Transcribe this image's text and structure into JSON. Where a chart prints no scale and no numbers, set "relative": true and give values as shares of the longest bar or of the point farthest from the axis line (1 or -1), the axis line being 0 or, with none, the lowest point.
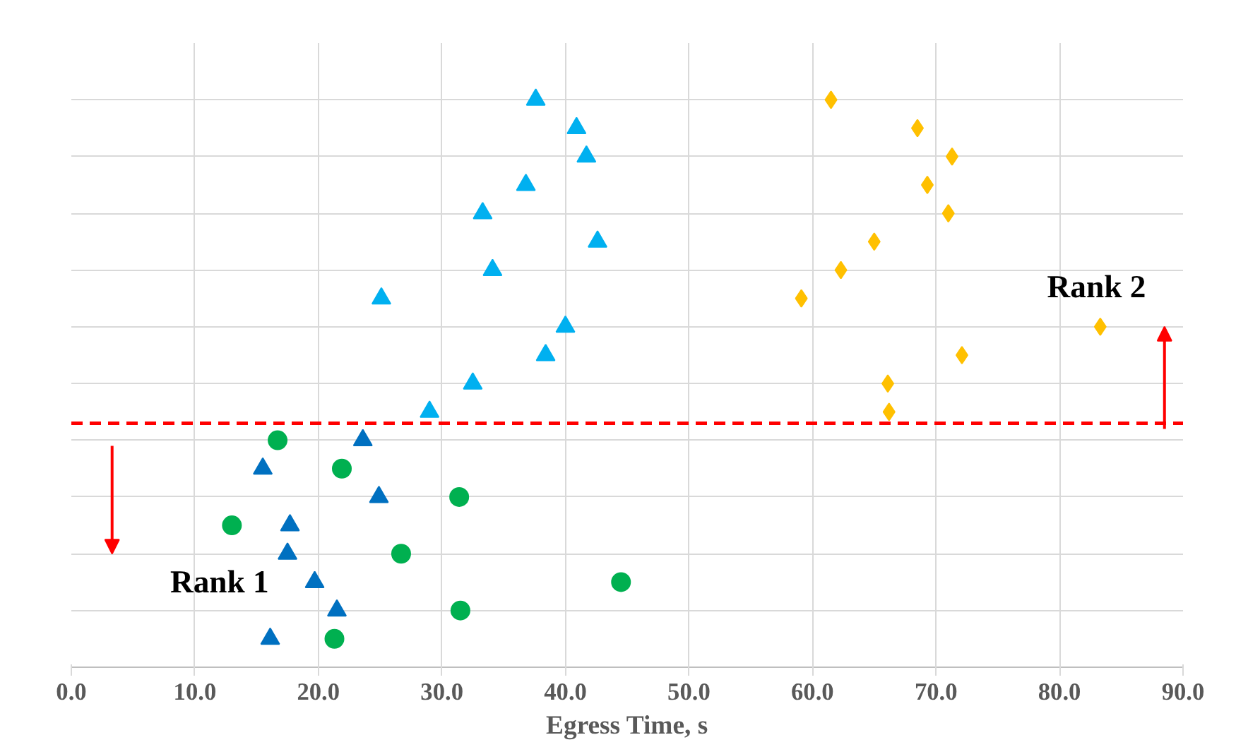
{
  "chart_data": {
    "type": "scatter",
    "xlabel": "Egress Time, s",
    "relative": true,
    "xlim": [
      0,
      90
    ],
    "xticks": [
      {
        "value": 0,
        "label": "0.0"
      },
      {
        "value": 10,
        "label": "10.0"
      },
      {
        "value": 20,
        "label": "20.0"
      },
      {
        "value": 30,
        "label": "30.0"
      },
      {
        "value": 40,
        "label": "40.0"
      },
      {
        "value": 50,
        "label": "50.0"
      },
      {
        "value": 60,
        "label": "60.0"
      },
      {
        "value": 70,
        "label": "70.0"
      },
      {
        "value": 80,
        "label": "80.0"
      },
      {
        "value": 90,
        "label": "90.0"
      }
    ],
    "grid": true,
    "series": [
      {
        "color": "#00b050",
        "marker": "circle",
        "x": [
          16.7,
          21.9,
          13.0,
          31.4,
          26.7,
          44.5,
          31.5,
          21.3
        ],
        "values": [
          0.4,
          0.35,
          0.25,
          0.3,
          0.2,
          0.15,
          0.1,
          0.05
        ]
      },
      {
        "color": "#0070c0",
        "marker": "triangle",
        "x": [
          23.6,
          15.5,
          24.9,
          17.7,
          17.5,
          19.7,
          21.5,
          16.1
        ],
        "values": [
          0.4,
          0.35,
          0.3,
          0.25,
          0.2,
          0.15,
          0.1,
          0.05
        ]
      },
      {
        "color": "#00b0f0",
        "marker": "triangle",
        "x": [
          37.6,
          40.9,
          41.7,
          36.8,
          33.3,
          42.6,
          34.1,
          25.1,
          40.0,
          38.4,
          32.5,
          29.0
        ],
        "values": [
          1.0,
          0.95,
          0.9,
          0.85,
          0.8,
          0.75,
          0.7,
          0.65,
          0.6,
          0.55,
          0.5,
          0.45
        ]
      },
      {
        "color": "#ffc000",
        "marker": "diamond",
        "x": [
          61.5,
          68.5,
          71.3,
          69.3,
          71.0,
          65.0,
          62.3,
          59.1,
          83.3,
          72.1,
          66.1,
          66.2
        ],
        "values": [
          1.0,
          0.95,
          0.9,
          0.85,
          0.8,
          0.75,
          0.7,
          0.65,
          0.6,
          0.55,
          0.5,
          0.45
        ]
      }
    ],
    "ref_lines": [
      {
        "axis": "y",
        "value": 0.43,
        "color": "#ff0000",
        "line_style": "dashed"
      }
    ],
    "annotations": [
      "Rank 1",
      "Rank 2"
    ]
  }
}
